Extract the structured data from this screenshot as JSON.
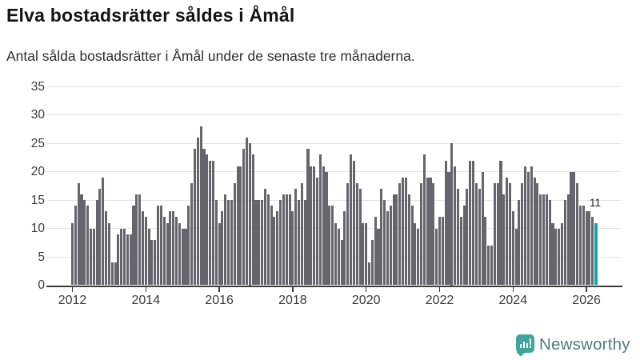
{
  "header": {
    "title": "Elva bostadsrätter såldes i Åmål",
    "subtitle": "Antal sålda bostadsrätter i Åmål under de senaste tre månaderna."
  },
  "chart_data": {
    "type": "bar",
    "title": "Elva bostadsrätter såldes i Åmål",
    "subtitle": "Antal sålda bostadsrätter i Åmål under de senaste tre månaderna.",
    "x_start": "2012-01",
    "frequency": "monthly",
    "xlabel": "",
    "ylabel": "",
    "ylim": [
      0,
      35
    ],
    "y_ticks": [
      0,
      5,
      10,
      15,
      20,
      25,
      30,
      35
    ],
    "x_tick_labels": [
      "2012",
      "2014",
      "2016",
      "2018",
      "2020",
      "2022",
      "2024",
      "2026"
    ],
    "grid": "horizontal",
    "legend": "none",
    "bar_color": "#65656d",
    "highlight_color": "#18a5a1",
    "highlight_last_bar": true,
    "last_value_label": "11",
    "values": [
      11,
      14,
      18,
      16,
      15,
      14,
      10,
      10,
      15,
      17,
      19,
      13,
      11,
      4,
      4,
      9,
      10,
      10,
      9,
      9,
      14,
      16,
      16,
      13,
      12,
      10,
      8,
      8,
      14,
      14,
      12,
      11,
      13,
      13,
      12,
      11,
      10,
      10,
      14,
      18,
      24,
      26,
      28,
      24,
      23,
      22,
      22,
      15,
      11,
      13,
      16,
      15,
      15,
      18,
      21,
      21,
      24,
      26,
      25,
      23,
      15,
      15,
      15,
      17,
      16,
      14,
      12,
      13,
      15,
      16,
      16,
      16,
      13,
      17,
      15,
      18,
      15,
      24,
      21,
      21,
      19,
      23,
      21,
      20,
      14,
      14,
      11,
      10,
      8,
      13,
      18,
      23,
      22,
      18,
      17,
      11,
      11,
      4,
      8,
      12,
      10,
      17,
      15,
      13,
      14,
      16,
      16,
      18,
      19,
      19,
      16,
      14,
      11,
      10,
      18,
      23,
      19,
      19,
      18,
      10,
      12,
      12,
      22,
      20,
      25,
      21,
      17,
      12,
      14,
      17,
      22,
      22,
      18,
      17,
      20,
      12,
      7,
      7,
      18,
      18,
      22,
      16,
      19,
      18,
      13,
      10,
      15,
      18,
      21,
      20,
      21,
      19,
      18,
      16,
      16,
      16,
      15,
      11,
      10,
      10,
      11,
      15,
      16,
      20,
      20,
      18,
      14,
      14,
      13,
      13,
      12,
      11
    ]
  },
  "annotation": {
    "last_value_label": "11"
  },
  "footer": {
    "brand": "Newsworthy",
    "icon": "speech-bubble-bar-chart-icon",
    "icon_color": "#3ea69d",
    "text_color": "#4e7e7e"
  }
}
